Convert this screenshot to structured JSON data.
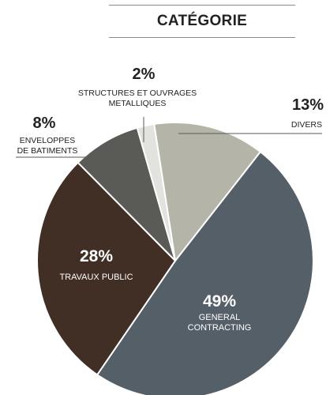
{
  "chart_data": {
    "type": "pie",
    "title": "CATÉGORIE",
    "slices": [
      {
        "label": [
          "GENERAL",
          "CONTRACTING"
        ],
        "percent_label": "49%",
        "value": 49,
        "color": "#555f68"
      },
      {
        "label": [
          "TRAVAUX PUBLIC"
        ],
        "percent_label": "28%",
        "value": 28,
        "color": "#412f25"
      },
      {
        "label": [
          "ENVELOPPES",
          "DE BATIMENTS"
        ],
        "percent_label": "8%",
        "value": 8,
        "color": "#5a5b56"
      },
      {
        "label": [
          "STRUCTURES ET OUVRAGES",
          "METALLIQUES"
        ],
        "percent_label": "2%",
        "value": 2,
        "color": "#e2e2de"
      },
      {
        "label": [
          "DIVERS"
        ],
        "percent_label": "13%",
        "value": 13,
        "color": "#b4b4a8"
      }
    ]
  }
}
